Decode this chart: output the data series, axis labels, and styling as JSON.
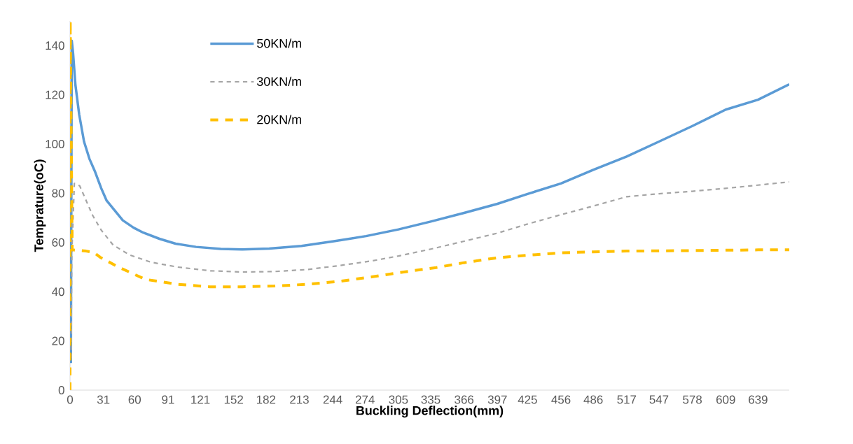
{
  "chart_data": {
    "type": "line",
    "xlabel": "Buckling Deflection(mm)",
    "ylabel": "Temprature(oC)",
    "xlim": [
      0,
      668
    ],
    "ylim": [
      0,
      150
    ],
    "xticks": [
      0,
      31,
      60,
      91,
      121,
      152,
      182,
      213,
      244,
      274,
      305,
      335,
      366,
      397,
      425,
      456,
      486,
      517,
      547,
      578,
      609,
      639
    ],
    "yticks": [
      0,
      20,
      40,
      60,
      80,
      100,
      120,
      140
    ],
    "legend": "top left",
    "grid": false,
    "series": [
      {
        "name": "50KN/m",
        "color": "#5b9bd5",
        "line_style": "solid",
        "x": [
          0.8,
          1.6,
          2.8,
          5,
          8.5,
          13,
          18,
          23,
          29,
          34,
          49,
          59,
          68,
          83,
          98,
          117,
          140,
          160,
          185,
          215,
          245,
          275,
          305,
          335,
          366,
          397,
          425,
          456,
          486,
          517,
          547,
          578,
          609,
          639,
          668
        ],
        "values": [
          11,
          142,
          137,
          124,
          112,
          101,
          94,
          89,
          82,
          77,
          69,
          66,
          64,
          61.5,
          59.5,
          58.2,
          57.4,
          57.2,
          57.5,
          58.6,
          60.5,
          62.6,
          65.3,
          68.5,
          72,
          75.7,
          79.7,
          84,
          89.5,
          94.9,
          101,
          107.3,
          114,
          118,
          124.3
        ]
      },
      {
        "name": "30KN/m",
        "color": "#a5a5a5",
        "line_style": "dashed",
        "x": [
          1,
          1.6,
          4,
          9,
          15,
          21,
          29,
          40,
          55,
          75,
          100,
          130,
          160,
          190,
          220,
          250,
          280,
          305,
          335,
          366,
          397,
          425,
          456,
          486,
          517,
          547,
          578,
          609,
          639,
          668
        ],
        "values": [
          13,
          55,
          84,
          83,
          77,
          71,
          65,
          59,
          55,
          52,
          50,
          48.5,
          48,
          48.2,
          49,
          50.6,
          52.5,
          54.5,
          57.3,
          60.5,
          63.8,
          67.5,
          71.3,
          74.8,
          78.6,
          79.8,
          80.8,
          82,
          83.3,
          84.6
        ]
      },
      {
        "name": "20KN/m",
        "color": "#ffc000",
        "line_style": "dashed",
        "x": [
          0,
          0.2,
          2,
          15,
          22,
          28,
          45,
          70,
          100,
          130,
          160,
          190,
          220,
          250,
          280,
          310,
          340,
          366,
          397,
          425,
          456,
          486,
          517,
          578,
          639,
          668
        ],
        "values": [
          0,
          150,
          57,
          56.5,
          56,
          54,
          50,
          45,
          43,
          42,
          42,
          42.3,
          43,
          44.2,
          46,
          48,
          49.8,
          51.8,
          53.8,
          54.8,
          55.8,
          56.2,
          56.5,
          56.7,
          57,
          57
        ]
      }
    ]
  }
}
